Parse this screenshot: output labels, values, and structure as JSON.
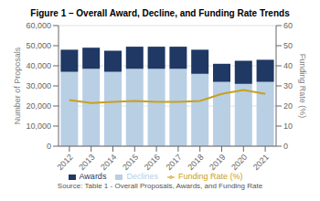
{
  "chart_data": {
    "type": "bar",
    "title": "Figure 1 – Overall Award, Decline, and Funding Rate Trends",
    "categories": [
      "2012",
      "2013",
      "2014",
      "2015",
      "2016",
      "2017",
      "2018",
      "2019",
      "2020",
      "2021"
    ],
    "series": [
      {
        "name": "Declines",
        "type": "bar",
        "color": "#b8cfe4",
        "values": [
          37000,
          38500,
          37000,
          38500,
          38500,
          38500,
          36000,
          32000,
          31000,
          32000
        ]
      },
      {
        "name": "Awards",
        "type": "bar",
        "color": "#1f3864",
        "values": [
          11000,
          10500,
          10500,
          11000,
          11000,
          11000,
          12000,
          9000,
          11500,
          11000
        ]
      },
      {
        "name": "Funding Rate (%)",
        "type": "line",
        "axis": "y2",
        "color": "#c8a020",
        "values": [
          23,
          21.5,
          22,
          22.5,
          22,
          22,
          22.5,
          26,
          28,
          26
        ]
      }
    ],
    "stacked": true,
    "ylabel": "Number of Proposals",
    "y2label": "Funding Rate (%)",
    "ylim": [
      0,
      60000
    ],
    "yticks": [
      0,
      {
        "value": 10000,
        "label": "10,000"
      },
      {
        "value": 20000,
        "label": "20,000"
      },
      {
        "value": 30000,
        "label": "30,000"
      },
      {
        "value": 40000,
        "label": "40,000"
      },
      {
        "value": 50000,
        "label": "50,000"
      },
      {
        "value": 60000,
        "label": "60,000"
      }
    ],
    "y2lim": [
      0,
      60
    ],
    "y2ticks": [
      0,
      10,
      20,
      30,
      40,
      50,
      60
    ],
    "grid": true,
    "legend": "bottom",
    "annotations": [
      "Source: Table 1 - Overall Proposals, Awards, and Funding Rate"
    ]
  }
}
